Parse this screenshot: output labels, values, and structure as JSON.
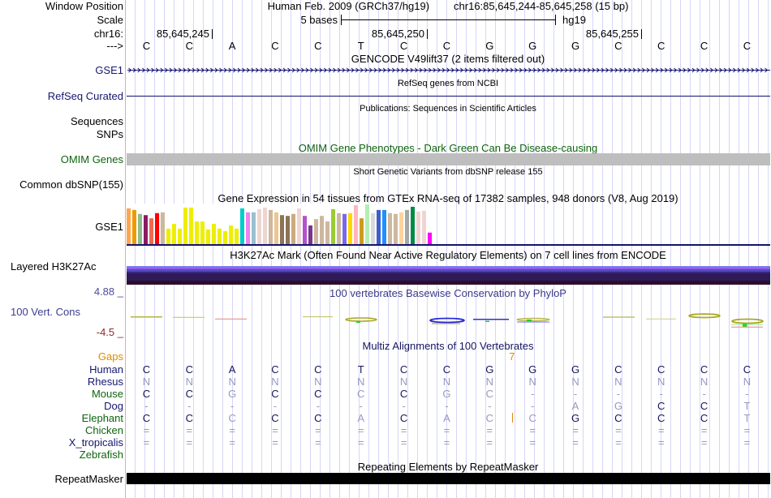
{
  "header": {
    "labels": {
      "window_position": "Window Position",
      "scale": "Scale",
      "chrom": "chr16:",
      "strand": "--->"
    },
    "assembly": "Human Feb. 2009 (GRCh37/hg19)",
    "position": "chr16:85,645,244-85,645,258 (15 bp)",
    "scale_text": "5 bases",
    "scale_db": "hg19",
    "ruler_ticks": [
      "85,645,245",
      "85,645,250",
      "85,645,255"
    ],
    "bases": [
      "C",
      "C",
      "A",
      "C",
      "C",
      "T",
      "C",
      "C",
      "G",
      "G",
      "G",
      "C",
      "C",
      "C",
      "C"
    ]
  },
  "tracks": {
    "gencode": {
      "title": "GENCODE V49lift37 (2 items filtered out)",
      "label": "GSE1",
      "color": "#10106e"
    },
    "refseq": {
      "title": "RefSeq genes from NCBI",
      "label": "RefSeq Curated",
      "color": "#10106e"
    },
    "publications": {
      "title": "Publications: Sequences in Scientific Articles",
      "label_line1": "Sequences",
      "label_line2": "SNPs"
    },
    "omim": {
      "title": "OMIM Gene Phenotypes - Dark Green Can Be Disease-causing",
      "label": "OMIM Genes",
      "color": "#0e640e",
      "feature_color": "#bebebe"
    },
    "dbsnp": {
      "title": "Short Genetic Variants from dbSNP release 155",
      "label": "Common dbSNP(155)"
    },
    "gtex": {
      "title": "Gene Expression in 54 tissues from GTEx RNA-seq of 17382 samples, 948 donors (V8, Aug 2019)",
      "label": "GSE1",
      "baseline_color": "#14146e",
      "bars": [
        {
          "color": "#FFA54F",
          "value": 0.9
        },
        {
          "color": "#EE9A00",
          "value": 0.86
        },
        {
          "color": "#8FBC8F",
          "value": 0.76
        },
        {
          "color": "#8B1C62",
          "value": 0.73
        },
        {
          "color": "#EE6A50",
          "value": 0.65
        },
        {
          "color": "#FF0000",
          "value": 0.78
        },
        {
          "color": "#CDB79E",
          "value": 0.8
        },
        {
          "color": "#EEEE00",
          "value": 0.39
        },
        {
          "color": "#EEEE00",
          "value": 0.51
        },
        {
          "color": "#EEEE00",
          "value": 0.39
        },
        {
          "color": "#EEEE00",
          "value": 0.92
        },
        {
          "color": "#EEEE00",
          "value": 0.92
        },
        {
          "color": "#EEEE00",
          "value": 0.57
        },
        {
          "color": "#EEEE00",
          "value": 0.57
        },
        {
          "color": "#EEEE00",
          "value": 0.37
        },
        {
          "color": "#EEEE00",
          "value": 0.51
        },
        {
          "color": "#EEEE00",
          "value": 0.39
        },
        {
          "color": "#EEEE00",
          "value": 0.33
        },
        {
          "color": "#EEEE00",
          "value": 0.47
        },
        {
          "color": "#EEEE00",
          "value": 0.39
        },
        {
          "color": "#00CDCD",
          "value": 0.9
        },
        {
          "color": "#EE82EE",
          "value": 0.8
        },
        {
          "color": "#9AC0CD",
          "value": 0.8
        },
        {
          "color": "#EED5D2",
          "value": 0.88
        },
        {
          "color": "#EED5D2",
          "value": 0.92
        },
        {
          "color": "#CDB79E",
          "value": 0.86
        },
        {
          "color": "#EEC591",
          "value": 0.8
        },
        {
          "color": "#8B7355",
          "value": 0.73
        },
        {
          "color": "#8B7355",
          "value": 0.71
        },
        {
          "color": "#CDAA7D",
          "value": 0.76
        },
        {
          "color": "#EED5D2",
          "value": 0.9
        },
        {
          "color": "#B452CD",
          "value": 0.71
        },
        {
          "color": "#7A378B",
          "value": 0.47
        },
        {
          "color": "#CDB79E",
          "value": 0.63
        },
        {
          "color": "#CDB79E",
          "value": 0.71
        },
        {
          "color": "#CDB79E",
          "value": 0.57
        },
        {
          "color": "#9ACD32",
          "value": 0.88
        },
        {
          "color": "#CDB79E",
          "value": 0.78
        },
        {
          "color": "#7A67EE",
          "value": 0.76
        },
        {
          "color": "#FFD700",
          "value": 0.78
        },
        {
          "color": "#FFB6C1",
          "value": 0.98
        },
        {
          "color": "#CD9B1D",
          "value": 0.65
        },
        {
          "color": "#B4EEB4",
          "value": 1.0
        },
        {
          "color": "#D9D9D9",
          "value": 0.78
        },
        {
          "color": "#3A5FCD",
          "value": 0.86
        },
        {
          "color": "#1E90FF",
          "value": 0.86
        },
        {
          "color": "#CDB79E",
          "value": 0.78
        },
        {
          "color": "#CDB79E",
          "value": 0.76
        },
        {
          "color": "#FFD39B",
          "value": 0.8
        },
        {
          "color": "#A6A6A6",
          "value": 0.86
        },
        {
          "color": "#008B45",
          "value": 0.94
        },
        {
          "color": "#EED5D2",
          "value": 0.82
        },
        {
          "color": "#EED5D2",
          "value": 0.84
        },
        {
          "color": "#FF00FF",
          "value": 0.29
        }
      ]
    },
    "h3k27ac": {
      "title": "H3K27Ac Mark (Often Found Near Active Regulatory Elements) on 7 cell lines from ENCODE",
      "label": "Layered H3K27Ac"
    },
    "phylop": {
      "title": "100 vertebrates Basewise Conservation by PhyloP",
      "label": "100 Vert. Cons",
      "max_label": "4.88 _",
      "min_label": "-4.5 _"
    },
    "multiz": {
      "title": "Multiz Alignments of 100 Vertebrates",
      "gaps_label": "Gaps",
      "gap_count": "7",
      "gap_after_base": 9,
      "match_color": "#14145c",
      "mismatch_color": "#9898c4",
      "gap_color": "#e08a00",
      "species": [
        {
          "name": "Human",
          "color": "#161670",
          "bases": [
            "C",
            "C",
            "A",
            "C",
            "C",
            "T",
            "C",
            "C",
            "G",
            "G",
            "G",
            "C",
            "C",
            "C",
            "C"
          ]
        },
        {
          "name": "Rhesus",
          "color": "#161670",
          "bases": [
            "N",
            "N",
            "N",
            "N",
            "N",
            "N",
            "N",
            "N",
            "N",
            "N",
            "N",
            "N",
            "N",
            "N",
            "N"
          ]
        },
        {
          "name": "Mouse",
          "color": "#0e640e",
          "bases": [
            "C",
            "C",
            "G",
            "C",
            "C",
            "C",
            "C",
            "G",
            "C",
            "-",
            "-",
            "-",
            "-",
            "-",
            "-"
          ]
        },
        {
          "name": "Dog",
          "color": "#161670",
          "bases": [
            "-",
            "-",
            "-",
            "-",
            "-",
            "-",
            "-",
            "-",
            "-",
            "-",
            "A",
            "G",
            "C",
            "C",
            "T"
          ]
        },
        {
          "name": "Elephant",
          "color": "#0e640e",
          "bases": [
            "C",
            "C",
            "C",
            "C",
            "C",
            "A",
            "C",
            "A",
            "C",
            "C",
            "G",
            "C",
            "C",
            "C",
            "T"
          ],
          "insertion_after_base": 9
        },
        {
          "name": "Chicken",
          "color": "#0e640e",
          "bases": [
            "=",
            "=",
            "=",
            "=",
            "=",
            "=",
            "=",
            "=",
            "=",
            "=",
            "=",
            "=",
            "=",
            "=",
            "="
          ]
        },
        {
          "name": "X_tropicalis",
          "color": "#161670",
          "bases": [
            "=",
            "=",
            "=",
            "=",
            "=",
            "=",
            "=",
            "=",
            "=",
            "=",
            "=",
            "=",
            "=",
            "=",
            "="
          ]
        },
        {
          "name": "Zebrafish",
          "color": "#0e640e",
          "bases": []
        }
      ]
    },
    "repeatmasker": {
      "title": "Repeating Elements by RepeatMasker",
      "label": "RepeatMasker"
    }
  }
}
